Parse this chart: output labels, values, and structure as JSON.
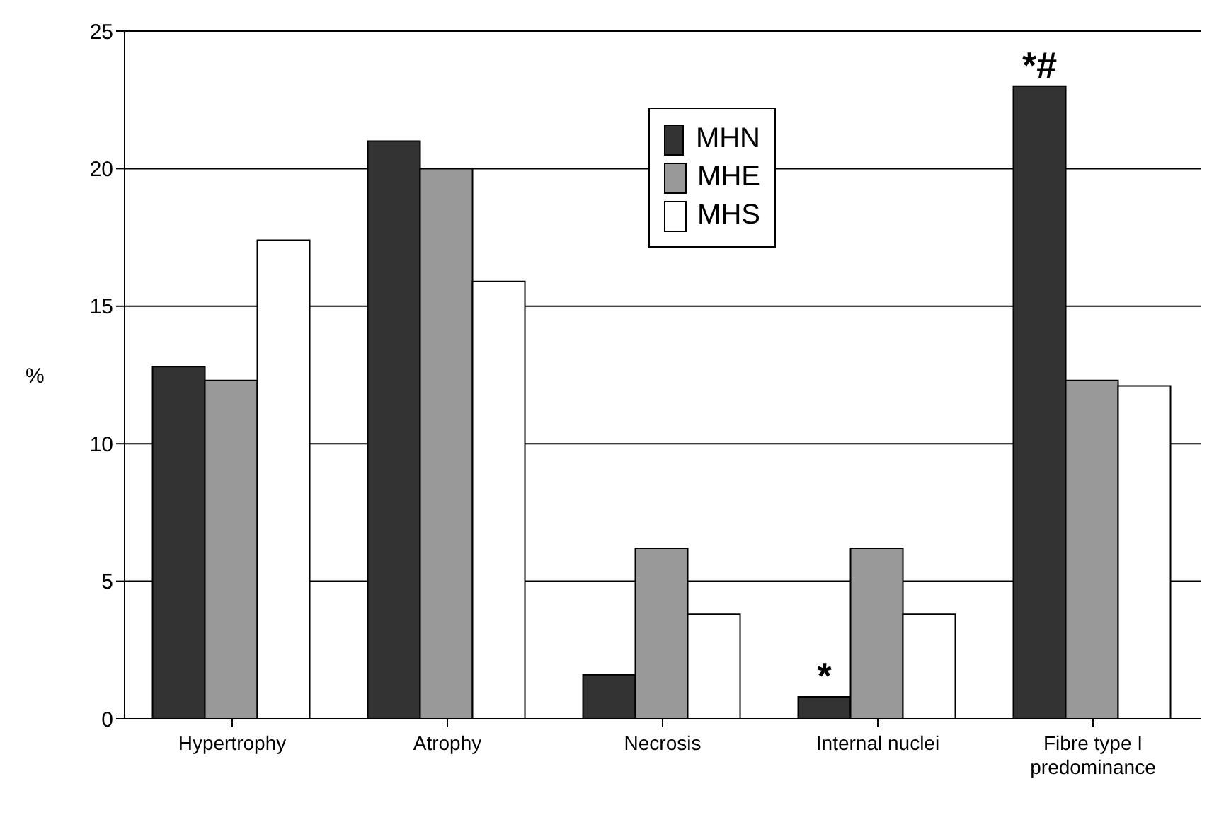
{
  "chart_data": {
    "type": "bar",
    "ylabel": "%",
    "categories": [
      "Hypertrophy",
      "Atrophy",
      "Necrosis",
      "Internal nuclei",
      "Fibre type I predominance"
    ],
    "series": [
      {
        "name": "MHN",
        "color": "#333333",
        "values": [
          12.8,
          21.0,
          1.6,
          0.8,
          23.0
        ]
      },
      {
        "name": "MHE",
        "color": "#999999",
        "values": [
          12.3,
          20.0,
          6.2,
          6.2,
          12.3
        ]
      },
      {
        "name": "MHS",
        "color": "#ffffff",
        "values": [
          17.4,
          15.9,
          3.8,
          3.8,
          12.1
        ]
      }
    ],
    "ylim": [
      0,
      25
    ],
    "yticks": [
      0,
      5,
      10,
      15,
      20,
      25
    ],
    "grid": "y",
    "legend": "top",
    "annotations": [
      "*",
      "*#"
    ]
  }
}
